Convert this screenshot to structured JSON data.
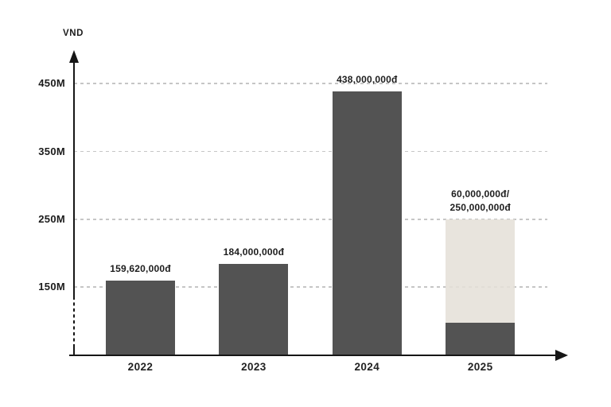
{
  "chart_data": {
    "type": "bar",
    "title": "",
    "xlabel": "",
    "ylabel": "VND",
    "categories": [
      "2022",
      "2023",
      "2024",
      "2025"
    ],
    "y_ticks": [
      {
        "label": "450M",
        "value": 450
      },
      {
        "label": "350M",
        "value": 350
      },
      {
        "label": "250M",
        "value": 250
      },
      {
        "label": "150M",
        "value": 150
      }
    ],
    "axis_break_below_first_tick": true,
    "grid": "dashed horizontal",
    "legend_position": "none",
    "bars": [
      {
        "category": "2022",
        "value": 159620000,
        "label": "159,620,000đ"
      },
      {
        "category": "2023",
        "value": 184000000,
        "label": "184,000,000đ"
      },
      {
        "category": "2024",
        "value": 438000000,
        "label": "438,000,000đ"
      },
      {
        "category": "2025",
        "value": 60000000,
        "goal": 250000000,
        "label": "60,000,000đ/\n250,000,000đ"
      }
    ],
    "colors": {
      "bar": "#535353",
      "goal_bar": "rgba(229,224,216,0.88)",
      "grid": "#c6c6c6",
      "axis": "#161616",
      "text": "#1d1d1d"
    }
  }
}
